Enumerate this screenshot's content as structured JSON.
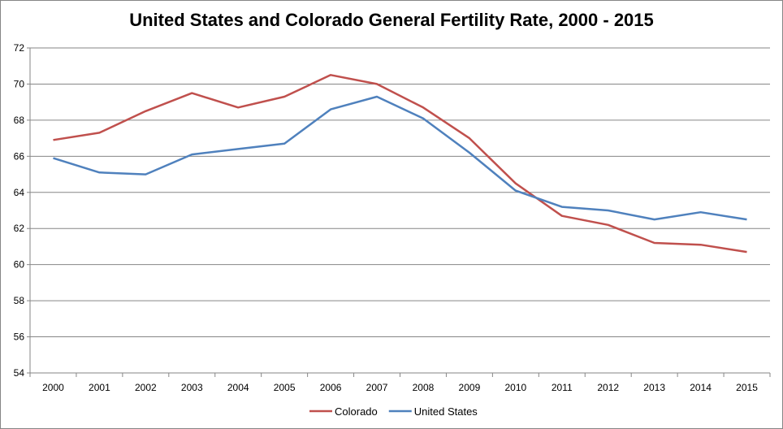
{
  "chart_data": {
    "type": "line",
    "title": "United States and Colorado General Fertility Rate, 2000 - 2015",
    "xlabel": "",
    "ylabel": "",
    "categories": [
      "2000",
      "2001",
      "2002",
      "2003",
      "2004",
      "2005",
      "2006",
      "2007",
      "2008",
      "2009",
      "2010",
      "2011",
      "2012",
      "2013",
      "2014",
      "2015"
    ],
    "ylim": [
      54,
      72
    ],
    "yticks": [
      54,
      56,
      58,
      60,
      62,
      64,
      66,
      68,
      70,
      72
    ],
    "grid": true,
    "legend_position": "bottom",
    "series": [
      {
        "name": "Colorado",
        "color": "#C0504D",
        "values": [
          66.9,
          67.3,
          68.5,
          69.5,
          68.7,
          69.3,
          70.5,
          70.0,
          68.7,
          67.0,
          64.5,
          62.7,
          62.2,
          61.2,
          61.1,
          60.7
        ]
      },
      {
        "name": "United States",
        "color": "#4F81BD",
        "values": [
          65.9,
          65.1,
          65.0,
          66.1,
          66.4,
          66.7,
          68.6,
          69.3,
          68.1,
          66.2,
          64.1,
          63.2,
          63.0,
          62.5,
          62.9,
          62.5
        ]
      }
    ]
  }
}
